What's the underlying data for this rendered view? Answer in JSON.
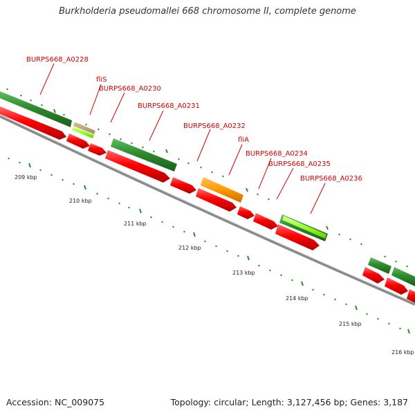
{
  "header": {
    "title": "Burkholderia pseudomallei 668 chromosome II, complete genome"
  },
  "footer": {
    "accession": "Accession: NC_009075",
    "topology": "Topology: circular; Length: 3,127,456 bp; Genes: 3,187"
  },
  "colors": {
    "forward_cds": "#ff0000",
    "reverse_cds": "#2e8b2e",
    "highlight_cds": "#ff9900",
    "light_green": "#99ff33",
    "backbone": "#888888",
    "label": "#d40000",
    "tick": "#2e8b2e"
  },
  "gene_labels": [
    "BURPS668_A0228",
    "fliS",
    "BURPS668_A0230",
    "BURPS668_A0231",
    "BURPS668_A0232",
    "fliA",
    "BURPS668_A0234",
    "BURPS668_A0235",
    "BURPS668_A0236"
  ],
  "scale_labels": [
    "209 kbp",
    "210 kbp",
    "211 kbp",
    "212 kbp",
    "213 kbp",
    "214 kbp",
    "215 kbp",
    "216 kbp"
  ]
}
